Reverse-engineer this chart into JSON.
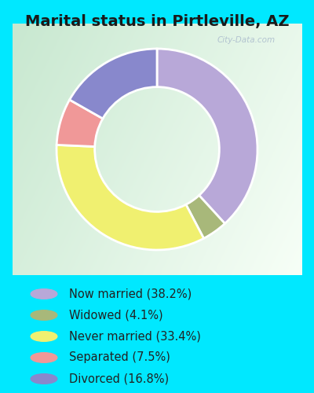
{
  "title": "Marital status in Pirtleville, AZ",
  "outer_bg": "#00e8ff",
  "chart_bg_color1": "#c8e8d0",
  "chart_bg_color2": "#f0f8f4",
  "slices": [
    {
      "label": "Now married (38.2%)",
      "value": 38.2,
      "color": "#b8a8d8"
    },
    {
      "label": "Widowed (4.1%)",
      "value": 4.1,
      "color": "#a8b87a"
    },
    {
      "label": "Never married (33.4%)",
      "value": 33.4,
      "color": "#f0f070"
    },
    {
      "label": "Separated (7.5%)",
      "value": 7.5,
      "color": "#f09898"
    },
    {
      "label": "Divorced (16.8%)",
      "value": 16.8,
      "color": "#8888cc"
    }
  ],
  "legend_labels": [
    "Now married (38.2%)",
    "Widowed (4.1%)",
    "Never married (33.4%)",
    "Separated (7.5%)",
    "Divorced (16.8%)"
  ],
  "legend_colors": [
    "#b8a8d8",
    "#a8b87a",
    "#f0f070",
    "#f09898",
    "#8888cc"
  ],
  "watermark": "City-Data.com",
  "title_fontsize": 14,
  "legend_fontsize": 10.5
}
